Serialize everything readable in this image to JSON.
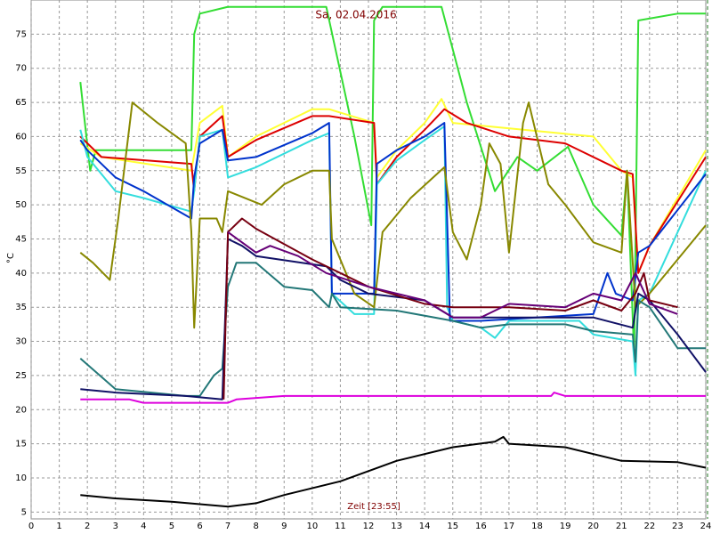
{
  "chart_data": {
    "type": "line",
    "title": "Sa, 02.04.2016",
    "x_label": "Zeit [23:55]",
    "y_label": "°C",
    "xlim": [
      0,
      24
    ],
    "ylim": [
      4,
      80
    ],
    "xticks": [
      0,
      1,
      2,
      3,
      4,
      5,
      6,
      7,
      8,
      9,
      10,
      11,
      12,
      13,
      14,
      15,
      16,
      17,
      18,
      19,
      20,
      21,
      22,
      23,
      24
    ],
    "yticks": [
      5,
      10,
      15,
      20,
      25,
      30,
      35,
      40,
      45,
      50,
      55,
      60,
      65,
      70,
      75
    ],
    "grid": true,
    "series": [
      {
        "color": "#33dd33",
        "x": [
          1.75,
          2.1,
          2.3,
          5.7,
          5.8,
          6.0,
          7.0,
          10.5,
          11.5,
          12.1,
          12.2,
          12.5,
          14.6,
          15.5,
          16.5,
          17.3,
          18.0,
          19.1,
          20.0,
          21.0,
          21.2,
          21.45,
          21.6,
          23.0,
          24.0
        ],
        "values": [
          68,
          55,
          58,
          58,
          75,
          78,
          79,
          79,
          60,
          47,
          77,
          79,
          79,
          65,
          52,
          57,
          55,
          58.5,
          50,
          45.5,
          55,
          28,
          77,
          78,
          78
        ]
      },
      {
        "color": "#ffff33",
        "x": [
          1.75,
          2.5,
          5.7,
          6.0,
          6.8,
          7.0,
          8.0,
          10.0,
          10.6,
          12.2,
          12.3,
          13.0,
          14.0,
          14.6,
          15.0,
          20.0,
          21.0,
          21.4,
          21.6,
          22.0,
          24.0
        ],
        "values": [
          59,
          57,
          55,
          62,
          64.5,
          57,
          60,
          64,
          64,
          62,
          54,
          58,
          62,
          65.5,
          62,
          60,
          55,
          54,
          40,
          44,
          58
        ]
      },
      {
        "color": "#dd0000",
        "x": [
          1.75,
          2.5,
          5.7,
          5.8,
          6.0,
          6.8,
          7.0,
          8.0,
          10.0,
          10.6,
          12.2,
          12.3,
          13.0,
          14.0,
          14.7,
          15.5,
          17.0,
          19.0,
          21.0,
          21.4,
          21.6,
          22.0,
          24.0
        ],
        "values": [
          60,
          57,
          56,
          52,
          60,
          63,
          57,
          59.5,
          63,
          63,
          62,
          53,
          57,
          61,
          64,
          62,
          60,
          59,
          55,
          54.5,
          40,
          44,
          57
        ]
      },
      {
        "color": "#33dddd",
        "x": [
          1.75,
          2.0,
          3.0,
          4.0,
          5.7,
          5.8,
          6.0,
          6.8,
          7.0,
          8.0,
          10.0,
          10.6,
          10.7,
          11.5,
          12.2,
          12.3,
          13.0,
          14.0,
          14.7,
          14.8,
          15.0,
          16.0,
          16.5,
          17.0,
          19.5,
          20.0,
          21.4,
          21.5,
          21.6,
          22.0,
          24.0
        ],
        "values": [
          61,
          57,
          52,
          51,
          49,
          52,
          60,
          61,
          54,
          55.5,
          59.5,
          60.5,
          37,
          34,
          34,
          53,
          56.5,
          59.5,
          61.5,
          35,
          33,
          32,
          30.5,
          33,
          33,
          31,
          30,
          25,
          36,
          37,
          55
        ]
      },
      {
        "color": "#0033cc",
        "x": [
          1.75,
          2.0,
          3.0,
          4.0,
          5.7,
          5.8,
          6.0,
          6.8,
          7.0,
          8.0,
          10.0,
          10.6,
          10.7,
          12.2,
          12.3,
          13.0,
          14.0,
          14.7,
          14.9,
          16.0,
          20.0,
          20.5,
          20.8,
          21.4,
          21.6,
          22.0,
          24.0
        ],
        "values": [
          59.5,
          58,
          54,
          52,
          48,
          54,
          59,
          61,
          56.5,
          57,
          60.5,
          62,
          37,
          37,
          56,
          58,
          60,
          62,
          33,
          33,
          34,
          40,
          37,
          36,
          43,
          44,
          54.5
        ]
      },
      {
        "color": "#888800",
        "x": [
          1.75,
          2.2,
          2.8,
          3.1,
          3.6,
          4.5,
          5.5,
          5.7,
          5.8,
          6.0,
          6.6,
          6.8,
          7.0,
          8.2,
          9.0,
          10.0,
          10.6,
          10.7,
          11.5,
          12.2,
          12.5,
          13.5,
          14.7,
          15.0,
          15.5,
          16.0,
          16.3,
          16.7,
          17.0,
          17.5,
          17.7,
          18.4,
          19.0,
          20.0,
          21.0,
          21.2,
          21.5,
          22.0,
          24.0
        ],
        "values": [
          43,
          41.5,
          39,
          48,
          65,
          62,
          59,
          46,
          32,
          48,
          48,
          46,
          52,
          50,
          53,
          55,
          55,
          45,
          37,
          35,
          46,
          51,
          55.5,
          46,
          42,
          50,
          59,
          56,
          43,
          62,
          65,
          53,
          50,
          44.5,
          43,
          55,
          35,
          37,
          47
        ]
      },
      {
        "color": "#227777",
        "x": [
          1.75,
          3.0,
          5.5,
          6.0,
          6.5,
          6.8,
          7.0,
          7.3,
          8.0,
          9.0,
          10.0,
          10.6,
          10.7,
          11.0,
          13.0,
          15.0,
          16.0,
          17.0,
          19.0,
          20.0,
          21.4,
          21.5,
          21.6,
          22.0,
          23.0,
          24.0
        ],
        "values": [
          27.5,
          23,
          22,
          22,
          25,
          26,
          38,
          41.5,
          41.5,
          38,
          37.5,
          35,
          37,
          35,
          34.5,
          33,
          32,
          32.5,
          32.5,
          31.5,
          31,
          27,
          36,
          35,
          29,
          29
        ]
      },
      {
        "color": "#111166",
        "x": [
          1.75,
          3.0,
          5.5,
          6.8,
          7.0,
          7.5,
          8.0,
          10.5,
          11.0,
          12.0,
          14.0,
          15.0,
          17.0,
          20.0,
          21.4,
          21.6,
          22.0,
          23.0,
          24.0
        ],
        "values": [
          23,
          22.5,
          22,
          21.5,
          45,
          44,
          42.5,
          41,
          39,
          37,
          36,
          33.5,
          33.5,
          33.5,
          32,
          37,
          36,
          31,
          25.5
        ]
      },
      {
        "color": "#770011",
        "x": [
          6.85,
          7.0,
          7.5,
          8.0,
          10.0,
          12.0,
          14.0,
          15.0,
          17.0,
          19.0,
          20.0,
          21.0,
          21.5,
          21.8,
          22.0,
          23.0
        ],
        "values": [
          21.5,
          46,
          48,
          46.5,
          42,
          38,
          35.5,
          35,
          35,
          34.5,
          36,
          34.5,
          37,
          40,
          36,
          35
        ]
      },
      {
        "color": "#660077",
        "x": [
          7.0,
          7.5,
          8.0,
          8.5,
          9.5,
          10.5,
          12.0,
          14.0,
          15.0,
          16.0,
          16.5,
          17.0,
          19.0,
          20.0,
          21.0,
          21.5,
          22.0,
          23.0
        ],
        "values": [
          46,
          44.5,
          43,
          44,
          42.5,
          40,
          38,
          36,
          33.5,
          33.5,
          34.5,
          35.5,
          35,
          37,
          36,
          40,
          35.5,
          34
        ]
      },
      {
        "color": "#dd00dd",
        "x": [
          1.75,
          3.5,
          4.0,
          7.0,
          7.3,
          9.0,
          16.0,
          18.5,
          18.6,
          19.0,
          24.0
        ],
        "values": [
          21.5,
          21.5,
          21,
          21,
          21.5,
          22,
          22,
          22,
          22.5,
          22,
          22
        ]
      },
      {
        "color": "#000000",
        "x": [
          1.75,
          3.0,
          5.0,
          7.0,
          8.0,
          9.0,
          11.0,
          13.0,
          15.0,
          16.5,
          16.8,
          17.0,
          19.0,
          21.0,
          23.0,
          24.0
        ],
        "values": [
          7.5,
          7,
          6.5,
          5.8,
          6.3,
          7.5,
          9.5,
          12.5,
          14.5,
          15.3,
          16,
          15,
          14.5,
          12.5,
          12.3,
          11.5
        ]
      }
    ]
  }
}
